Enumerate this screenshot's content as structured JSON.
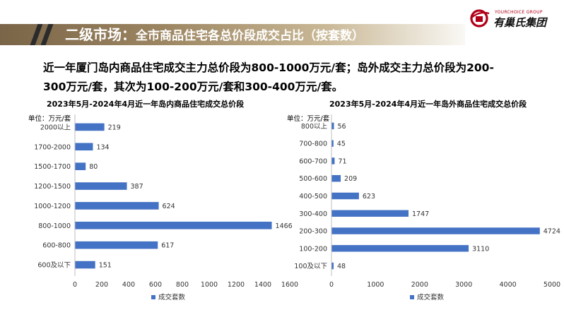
{
  "header": {
    "title_main": "二级市场：",
    "title_sub": "全市商品住宅各总价段成交占比（按套数）",
    "accent_color": "#8c7552"
  },
  "logo": {
    "name_en": "YOURCHOICE GROUP",
    "name_cn": "有巢氏集团",
    "color": "#b00018"
  },
  "summary": {
    "line1": "近一年厦门岛内商品住宅成交主力总价段为800-1000万元/套；岛外成交主力总价段为200-",
    "line2": "300万元/套，其次为100-200万元/套和300-400万元/套。"
  },
  "bar_color": "#4472c4",
  "chart_data": [
    {
      "type": "bar",
      "orientation": "horizontal",
      "title": "2023年5月-2024年4月近一年岛内商品住宅成交总价段",
      "unit_label": "单位：万元/套",
      "categories": [
        "2000以上",
        "1700-2000",
        "1500-1700",
        "1200-1500",
        "1000-1200",
        "800-1000",
        "600-800",
        "600及以下"
      ],
      "series": [
        {
          "name": "成交套数",
          "values": [
            219,
            134,
            80,
            387,
            624,
            1466,
            617,
            151
          ]
        }
      ],
      "xlim": [
        0,
        1600
      ],
      "x_ticks": [
        0,
        200,
        400,
        600,
        800,
        1000,
        1200,
        1400,
        1600
      ],
      "legend": "bottom"
    },
    {
      "type": "bar",
      "orientation": "horizontal",
      "title": "2023年5月-2024年4月近一年岛外商品住宅成交总价段",
      "unit_label": "单位：万元/套",
      "categories": [
        "800以上",
        "700-800",
        "600-700",
        "500-600",
        "400-500",
        "300-400",
        "200-300",
        "100-200",
        "100及以下"
      ],
      "series": [
        {
          "name": "成交套数",
          "values": [
            56,
            45,
            71,
            209,
            623,
            1747,
            4724,
            3110,
            48
          ]
        }
      ],
      "xlim": [
        0,
        5000
      ],
      "x_ticks": [
        0,
        1000,
        2000,
        3000,
        4000,
        5000
      ],
      "legend": "bottom"
    }
  ]
}
